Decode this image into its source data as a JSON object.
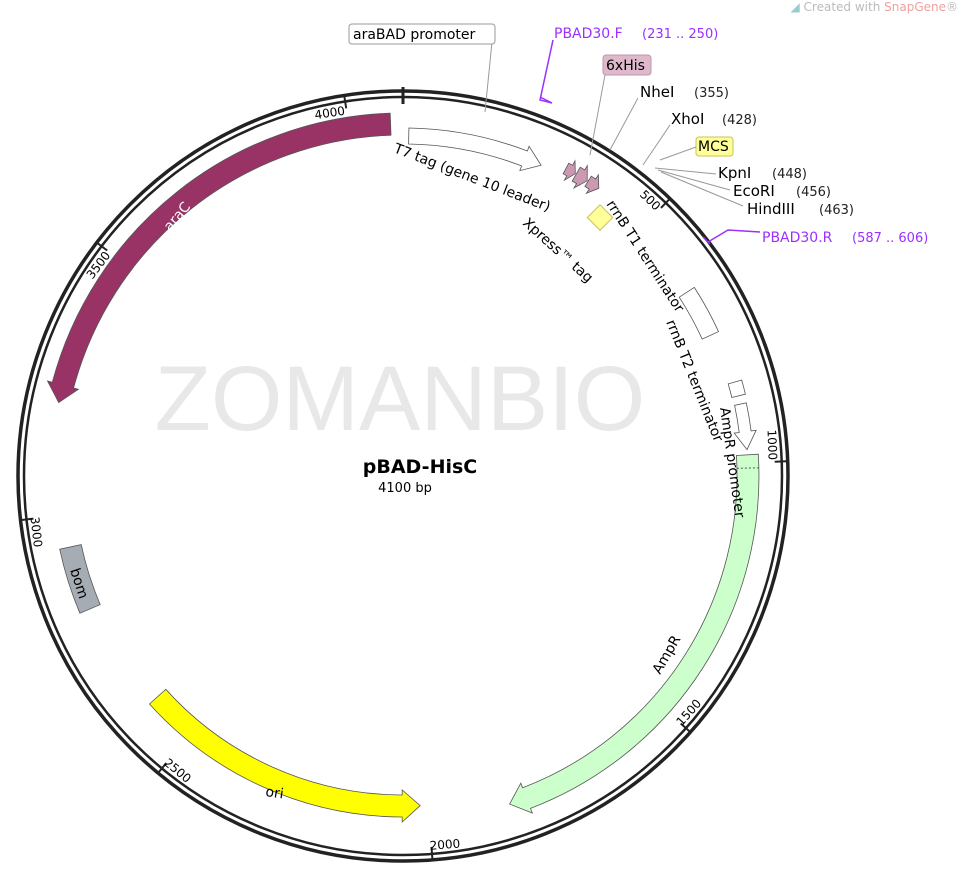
{
  "credit": {
    "prefix": "Created with ",
    "brand": "SnapGene",
    "mark": "®",
    "icon": "snapgene-logo-icon"
  },
  "watermark": "ZOMANBIO",
  "plasmid": {
    "name": "pBAD-HisC",
    "length_label": "4100 bp",
    "length": 4100
  },
  "ticks": [
    "500",
    "1000",
    "1500",
    "2000",
    "2500",
    "3000",
    "3500",
    "4000"
  ],
  "features": [
    {
      "id": "araC",
      "label": "araC",
      "start": 3212,
      "end": 4077,
      "direction": "reverse",
      "color": "#993366"
    },
    {
      "id": "t7",
      "label": "T7 tag (gene 10 leader)",
      "start": 11,
      "end": 273,
      "direction": "forward",
      "color": "#ffffff"
    },
    {
      "id": "his1",
      "label": "",
      "start": 318,
      "end": 338,
      "direction": "forward",
      "color": "#cc99b2"
    },
    {
      "id": "his2",
      "label": "",
      "start": 340,
      "end": 364,
      "direction": "forward",
      "color": "#cc99b2"
    },
    {
      "id": "xpress",
      "label": "Xpress™ tag",
      "start": 366,
      "end": 390,
      "direction": "forward",
      "color": "#cc99b2"
    },
    {
      "id": "rrnbt1",
      "label": "rrnB T1 terminator",
      "start": 650,
      "end": 745,
      "direction": "none",
      "color": "#ffffff"
    },
    {
      "id": "rrnbt2",
      "label": "rrnB T2 terminator",
      "start": 845,
      "end": 872,
      "direction": "none",
      "color": "#ffffff"
    },
    {
      "id": "ampprom",
      "label": "AmpR promoter",
      "start": 888,
      "end": 975,
      "direction": "forward",
      "color": "#ffffff"
    },
    {
      "id": "ampr",
      "label": "AmpR",
      "start": 985,
      "end": 1845,
      "direction": "forward",
      "color": "#ccffcc"
    },
    {
      "id": "ori",
      "label": "ori",
      "start": 2016,
      "end": 2597,
      "direction": "reverse",
      "color": "#ffff00"
    },
    {
      "id": "bom",
      "label": "bom",
      "start": 2813,
      "end": 2938,
      "direction": "none",
      "color": "#a6acb3"
    }
  ],
  "callouts": {
    "arabad": "araBAD promoter",
    "his": "6xHis",
    "mcs": "MCS",
    "his_color": "#e0b8cc",
    "mcs_color": "#ffff99"
  },
  "sites": [
    {
      "name": "NheI",
      "pos": "(355)"
    },
    {
      "name": "XhoI",
      "pos": "(428)"
    },
    {
      "name": "KpnI",
      "pos": "(448)"
    },
    {
      "name": "EcoRI",
      "pos": "(456)"
    },
    {
      "name": "HindIII",
      "pos": "(463)"
    }
  ],
  "primers": [
    {
      "name": "PBAD30.F",
      "range": "(231 .. 250)",
      "color": "#9b30ff"
    },
    {
      "name": "PBAD30.R",
      "range": "(587 .. 606)",
      "color": "#9b30ff"
    }
  ]
}
